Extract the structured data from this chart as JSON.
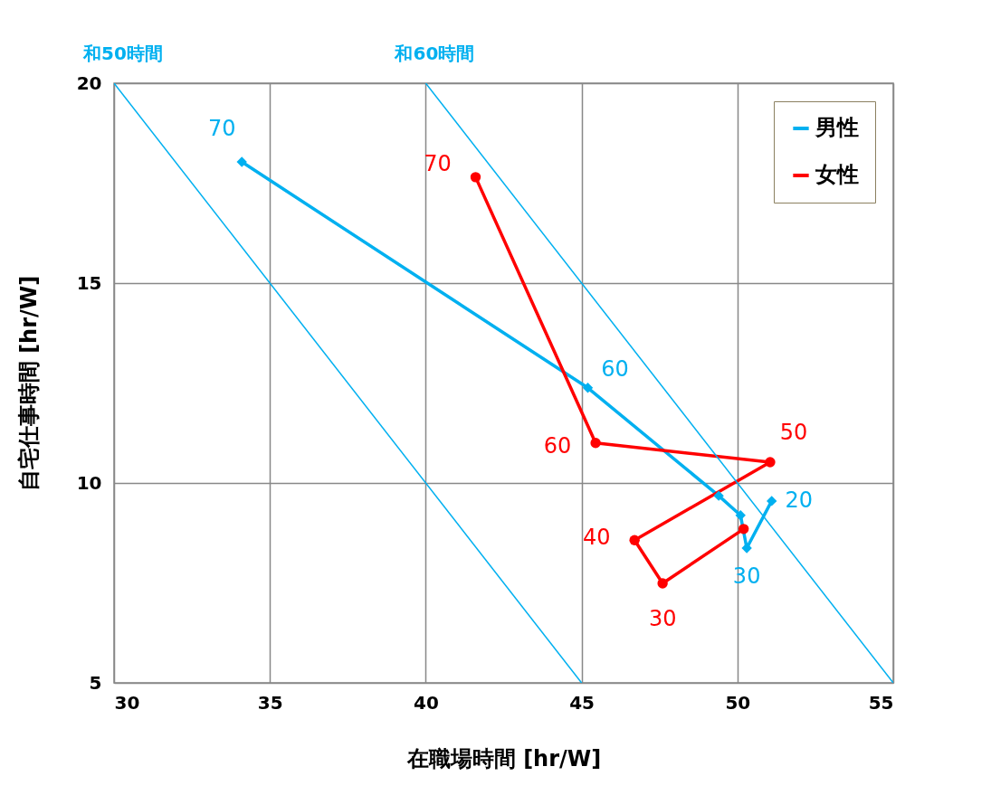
{
  "chart_data": {
    "type": "line",
    "xlabel": "在職場時間 [hr/W]",
    "ylabel": "自宅仕事時間 [hr/W]",
    "xlim": [
      30,
      55
    ],
    "xticks": [
      30,
      35,
      40,
      45,
      50,
      55
    ],
    "ylim": [
      5,
      20
    ],
    "yticks": [
      5,
      10,
      15,
      20
    ],
    "grid": true,
    "legend": "top right",
    "series": [
      {
        "name": "男性",
        "color": "#00b0f0",
        "marker": "diamond",
        "x": [
          51.1,
          50.3,
          50.1,
          49.4,
          45.2,
          34.1
        ],
        "values": [
          9.55,
          8.37,
          9.19,
          9.68,
          12.38,
          18.03
        ]
      },
      {
        "name": "女性",
        "color": "#ff0000",
        "marker": "circle",
        "x": [
          50.2,
          47.6,
          46.7,
          51.05,
          45.45,
          41.6
        ],
        "values": [
          8.85,
          7.49,
          8.57,
          10.52,
          11.0,
          17.65
        ]
      },
      {
        "name": "和50時間",
        "color": "#00b0f0",
        "marker": "none",
        "x": [
          30,
          45
        ],
        "values": [
          20,
          5
        ]
      },
      {
        "name": "和60時間",
        "color": "#00b0f0",
        "marker": "none",
        "x": [
          40,
          55
        ],
        "values": [
          20,
          5
        ]
      }
    ],
    "annotations": [
      {
        "text": "20",
        "x": 51.1,
        "y": 9.55
      },
      {
        "text": "30",
        "x": 50.3,
        "y": 8.37
      },
      {
        "text": "60",
        "x": 45.2,
        "y": 12.38
      },
      {
        "text": "70",
        "x": 34.1,
        "y": 18.03
      },
      {
        "text": "30",
        "x": 47.6,
        "y": 7.49
      },
      {
        "text": "40",
        "x": 46.7,
        "y": 8.57
      },
      {
        "text": "50",
        "x": 51.05,
        "y": 10.52
      },
      {
        "text": "60",
        "x": 45.45,
        "y": 11.0
      },
      {
        "text": "70",
        "x": 41.6,
        "y": 17.65
      }
    ]
  }
}
